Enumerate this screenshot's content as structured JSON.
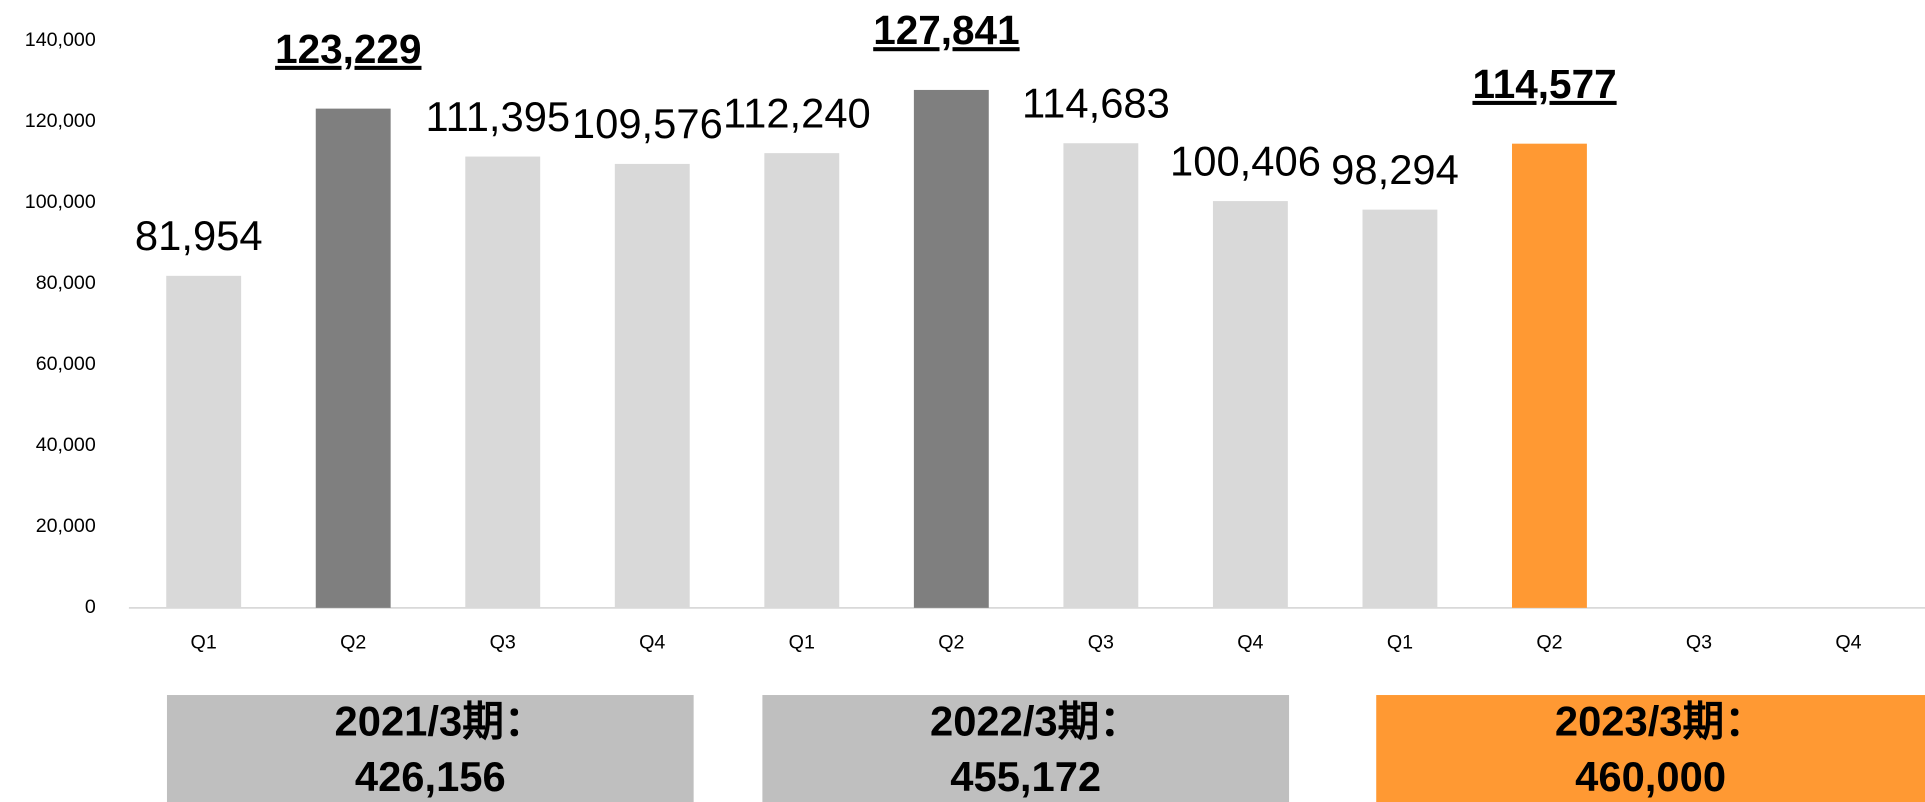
{
  "chart_data": {
    "type": "bar",
    "categories": [
      "Q1",
      "Q2",
      "Q3",
      "Q4",
      "Q1",
      "Q2",
      "Q3",
      "Q4",
      "Q1",
      "Q2",
      "Q3",
      "Q4"
    ],
    "values": [
      81954,
      123229,
      111395,
      109576,
      112240,
      127841,
      114683,
      100406,
      98294,
      114577,
      null,
      null
    ],
    "value_labels": [
      "81,954",
      "123,229",
      "111,395",
      "109,576",
      "112,240",
      "127,841",
      "114,683",
      "100,406",
      "98,294",
      "114,577",
      null,
      null
    ],
    "colors": [
      "#d9d9d9",
      "#7f7f7f",
      "#d9d9d9",
      "#d9d9d9",
      "#d9d9d9",
      "#7f7f7f",
      "#d9d9d9",
      "#d9d9d9",
      "#d9d9d9",
      "#ff9933",
      "#d9d9d9",
      "#d9d9d9"
    ],
    "emphasized_labels": [
      1,
      5,
      9
    ],
    "ylim": [
      0,
      140000
    ],
    "yticks": [
      0,
      {
        "value": 20000,
        "label": "20,000"
      },
      {
        "value": 40000,
        "label": "40,000"
      },
      {
        "value": 60000,
        "label": "60,000"
      },
      {
        "value": 80000,
        "label": "80,000"
      },
      {
        "value": 100000,
        "label": "100,000"
      },
      {
        "value": 120000,
        "label": "120,000"
      },
      {
        "value": 140000,
        "label": "140,000"
      }
    ],
    "grid": false,
    "fiscal_totals": [
      {
        "label": "2021/3期：",
        "value": "426,156",
        "color": "#bfbfbf"
      },
      {
        "label": "2022/3期：",
        "value": "455,172",
        "color": "#bfbfbf"
      },
      {
        "label": "2023/3期：",
        "value": "460,000",
        "color": "#ff9933"
      }
    ]
  }
}
